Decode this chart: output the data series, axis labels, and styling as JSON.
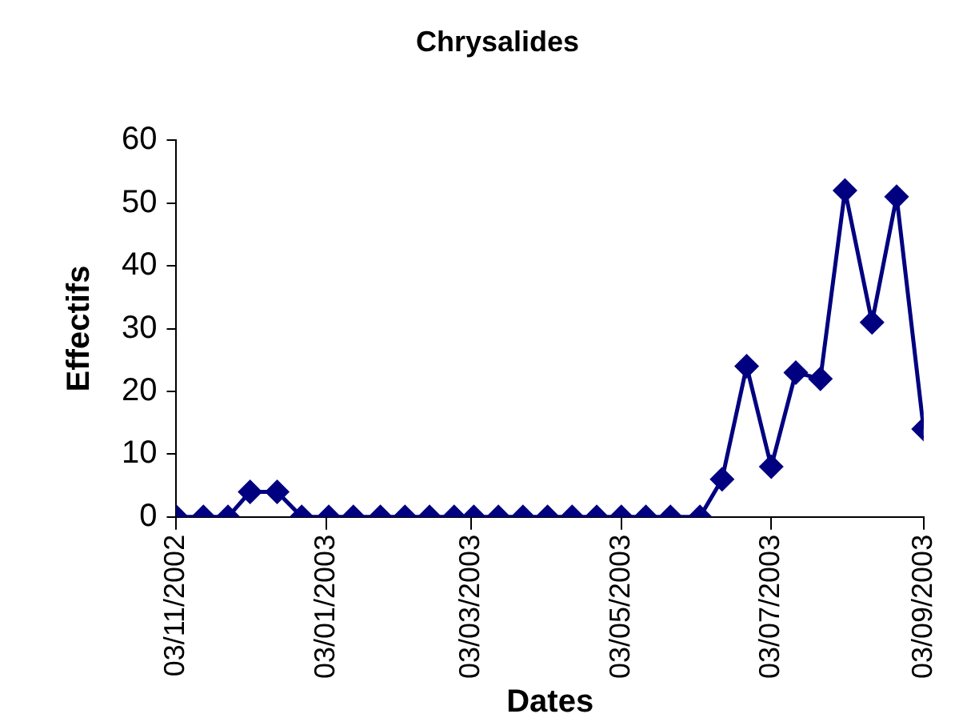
{
  "chart_data": {
    "type": "line",
    "title": "Chrysalides",
    "xlabel": "Dates",
    "ylabel": "Effectifs",
    "x": [
      "2002-11-03",
      "2002-11-14",
      "2002-11-24",
      "2002-12-03",
      "2002-12-14",
      "2002-12-24",
      "2003-01-04",
      "2003-01-14",
      "2003-01-25",
      "2003-02-04",
      "2003-02-14",
      "2003-02-24",
      "2003-03-04",
      "2003-03-14",
      "2003-03-24",
      "2003-04-03",
      "2003-04-13",
      "2003-04-23",
      "2003-05-03",
      "2003-05-13",
      "2003-05-23",
      "2003-06-04",
      "2003-06-13",
      "2003-06-23",
      "2003-07-03",
      "2003-07-13",
      "2003-07-23",
      "2003-08-02",
      "2003-08-13",
      "2003-08-23",
      "2003-09-03"
    ],
    "series": [
      {
        "color": "#000080",
        "values": [
          0,
          0,
          0,
          4,
          4,
          0,
          0,
          0,
          0,
          0,
          0,
          0,
          0,
          0,
          0,
          0,
          0,
          0,
          0,
          0,
          0,
          0,
          6,
          24,
          8,
          23,
          22,
          52,
          31,
          51,
          14
        ]
      }
    ],
    "xlim": [
      "2002-11-03",
      "2003-09-03"
    ],
    "xticks": [
      {
        "value": "2002-11-03",
        "label": "03/11/2002"
      },
      {
        "value": "2003-01-03",
        "label": "03/01/2003"
      },
      {
        "value": "2003-03-03",
        "label": "03/03/2003"
      },
      {
        "value": "2003-05-03",
        "label": "03/05/2003"
      },
      {
        "value": "2003-07-03",
        "label": "03/07/2003"
      },
      {
        "value": "2003-09-03",
        "label": "03/09/2003"
      }
    ],
    "ylim": [
      0,
      60
    ],
    "yticks": [
      0,
      10,
      20,
      30,
      40,
      50,
      60
    ],
    "grid": false,
    "legend": false,
    "marker": "diamond",
    "line_style": "solid"
  }
}
